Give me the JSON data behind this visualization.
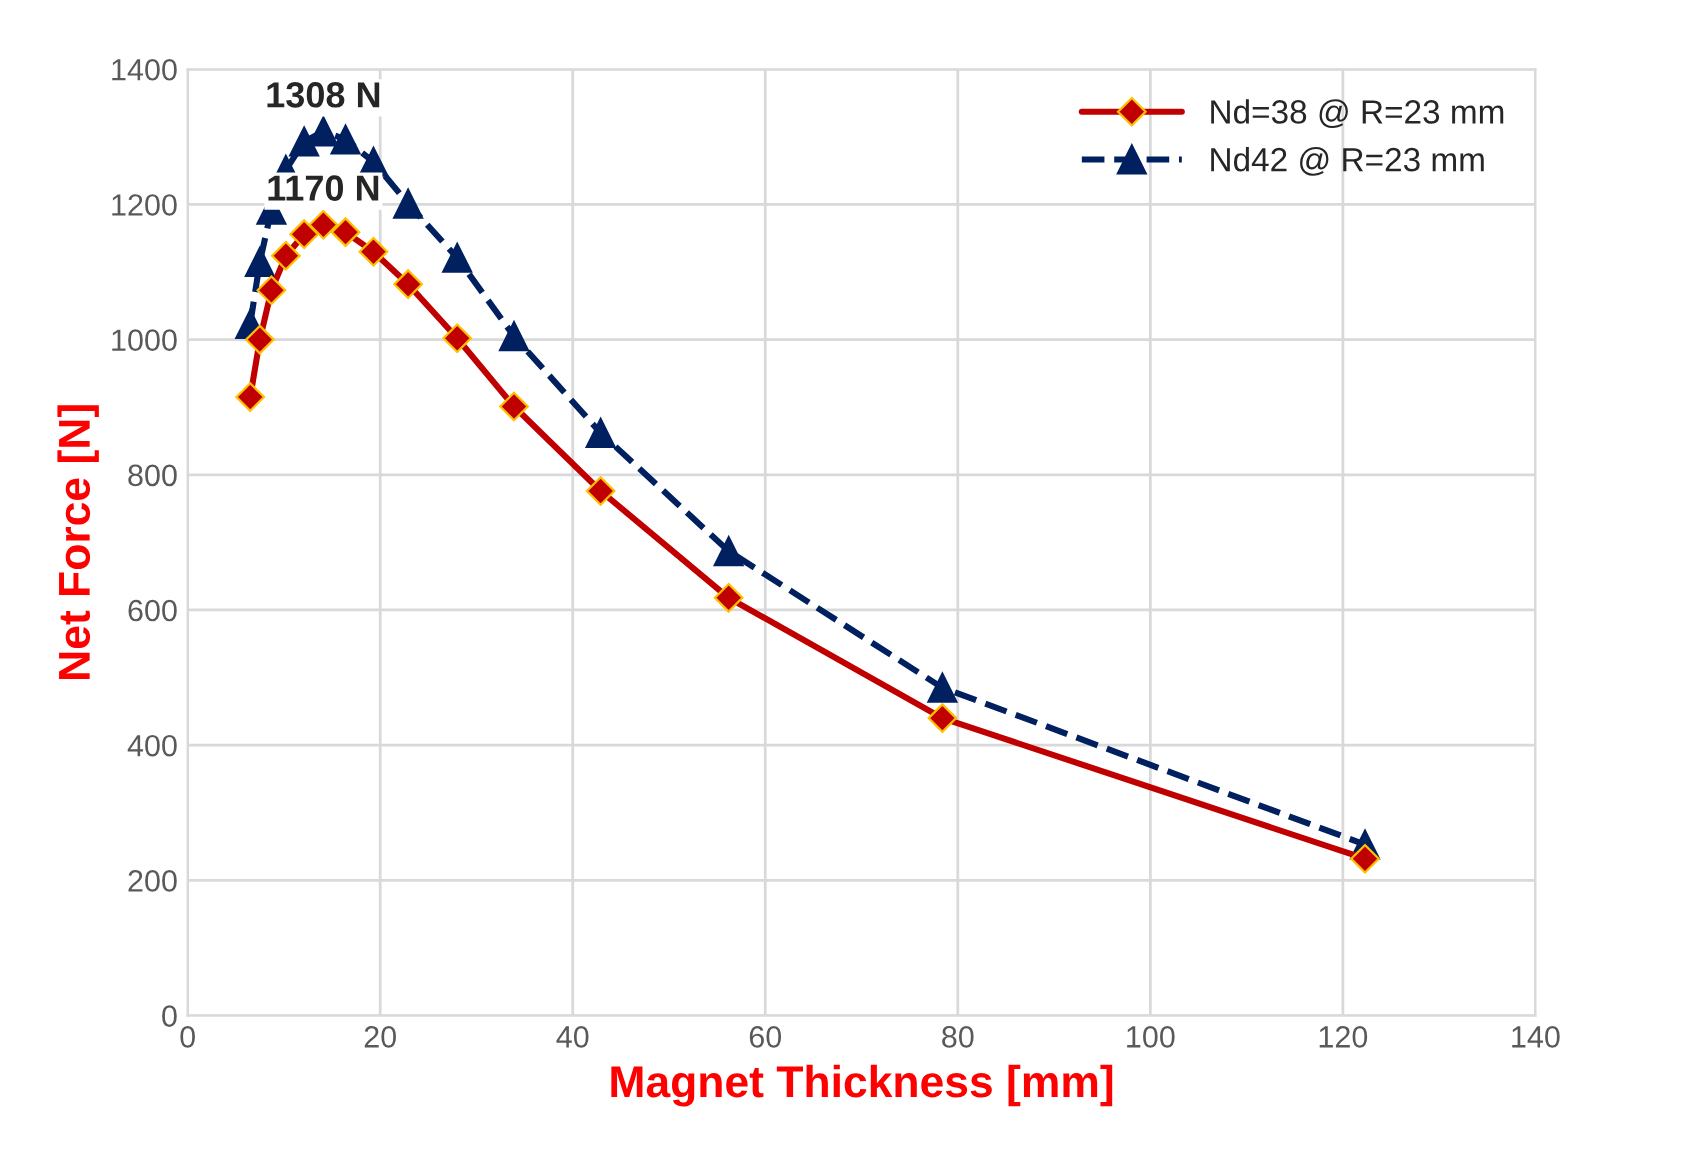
{
  "chart_data": {
    "type": "line",
    "xlabel": "Magnet Thickness [mm]",
    "ylabel": "Net Force [N]",
    "x": [
      6.5,
      7.5,
      8.7,
      10.2,
      12.1,
      14.1,
      16.4,
      19.3,
      22.9,
      28,
      33.9,
      42.9,
      56.2,
      78.4,
      122.3
    ],
    "series": [
      {
        "name": "Nd=38 @ R=23 mm",
        "color": "#c00000",
        "marker": "diamond",
        "line_style": "solid",
        "values": [
          915,
          1000,
          1073,
          1124,
          1156,
          1170,
          1159,
          1130,
          1082,
          1002,
          901,
          776,
          618,
          440,
          232
        ]
      },
      {
        "name": "Nd42 @ R=23 mm",
        "color": "#002060",
        "marker": "triangle",
        "line_style": "dashed",
        "values": [
          1023,
          1115,
          1192,
          1251,
          1293,
          1308,
          1296,
          1263,
          1201,
          1121,
          1005,
          862,
          687,
          485,
          253
        ]
      }
    ],
    "annotations": [
      {
        "text": "1308 N",
        "x": 14.1,
        "y": 1308
      },
      {
        "text": "1170 N",
        "x": 14.1,
        "y": 1170
      }
    ],
    "xlim": [
      0,
      140
    ],
    "xticks": [
      0,
      20,
      40,
      60,
      80,
      100,
      120,
      140
    ],
    "ylim": [
      0,
      1400
    ],
    "yticks": [
      0,
      200,
      400,
      600,
      800,
      1000,
      1200,
      1400
    ],
    "grid": true,
    "legend": "top right"
  }
}
